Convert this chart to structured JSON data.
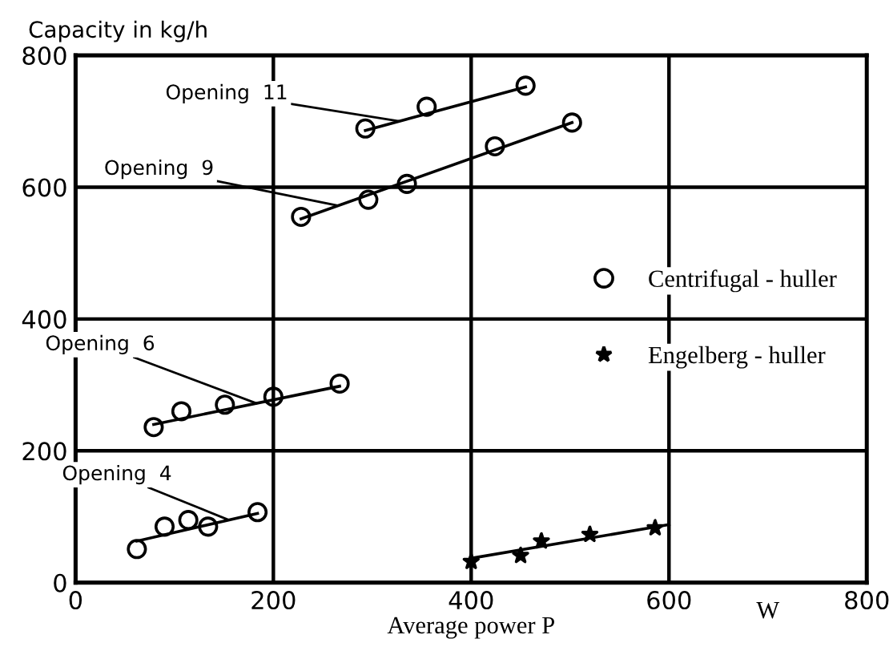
{
  "chart_data": {
    "type": "scatter",
    "xlabel": "Average power P",
    "ylabel": "Capacity in kg/h",
    "xlim": [
      0,
      800
    ],
    "ylim": [
      0,
      800
    ],
    "xticks": [
      0,
      200,
      400,
      600,
      800
    ],
    "yticks": [
      0,
      200,
      400,
      600,
      800
    ],
    "grid": true,
    "legend": "right",
    "series": [
      {
        "name": "Centrifugal - huller",
        "marker": "circle",
        "color": "#000000",
        "x": [
          293,
          355,
          455,
          228,
          296,
          335,
          424,
          502,
          79,
          107,
          151,
          200,
          267,
          62,
          90,
          114,
          134,
          184
        ],
        "values": [
          689,
          722,
          754,
          555,
          581,
          605,
          662,
          698,
          236,
          260,
          270,
          282,
          302,
          51,
          85,
          95,
          85,
          107
        ]
      },
      {
        "name": "Engelberg - huller",
        "marker": "star",
        "color": "#000000",
        "x": [
          400,
          450,
          471,
          520,
          586
        ],
        "values": [
          32,
          41,
          63,
          73,
          83
        ]
      },
      {
        "type": "line",
        "color": "#000000",
        "x": [
          293,
          455
        ],
        "values": [
          686,
          752
        ]
      },
      {
        "type": "line",
        "color": "#000000",
        "x": [
          228,
          502
        ],
        "values": [
          552,
          698
        ]
      },
      {
        "type": "line",
        "color": "#000000",
        "x": [
          79,
          267
        ],
        "values": [
          240,
          298
        ]
      },
      {
        "type": "line",
        "color": "#000000",
        "x": [
          62,
          184
        ],
        "values": [
          63,
          105
        ]
      },
      {
        "type": "line",
        "color": "#000000",
        "x": [
          400,
          600
        ],
        "values": [
          37,
          88
        ]
      }
    ],
    "annotations": [
      {
        "text": "Opening  11",
        "x": 327,
        "y": 700
      },
      {
        "text": "Opening  9",
        "x": 265,
        "y": 572
      },
      {
        "text": "Opening  6",
        "x": 183,
        "y": 272
      },
      {
        "text": "Opening  4",
        "x": 155,
        "y": 95
      },
      "W"
    ]
  }
}
